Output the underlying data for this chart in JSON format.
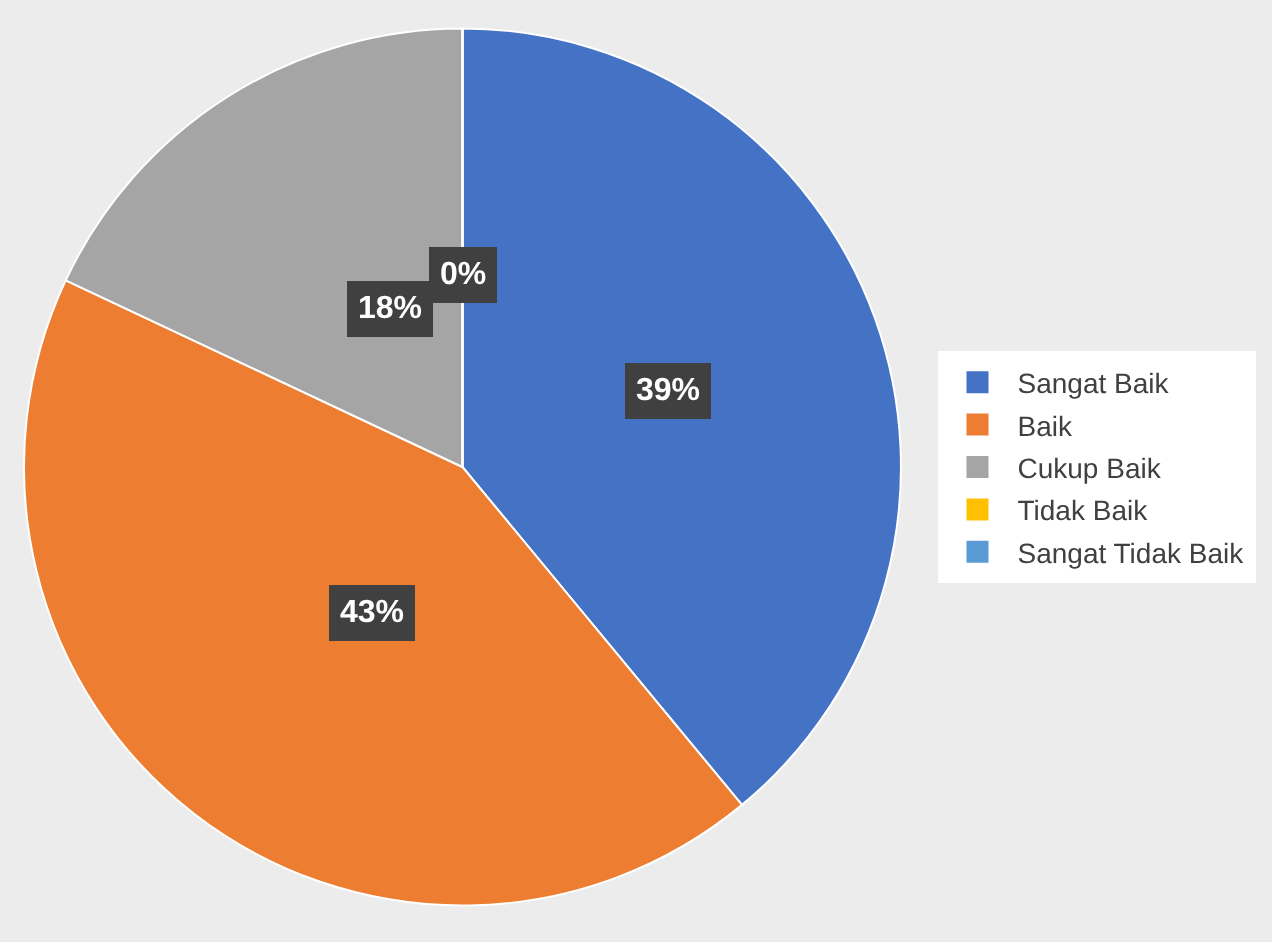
{
  "chart_data": {
    "type": "pie",
    "categories": [
      "Sangat Baik",
      "Baik",
      "Cukup Baik",
      "Tidak Baik",
      "Sangat Tidak Baik"
    ],
    "values": [
      39,
      43,
      18,
      0,
      0
    ],
    "colors": [
      "#4472c4",
      "#ed7d31",
      "#a5a5a5",
      "#ffc000",
      "#5b9bd5"
    ],
    "value_labels": [
      "39%",
      "43%",
      "18%",
      "0%",
      null
    ],
    "legend": "right"
  }
}
